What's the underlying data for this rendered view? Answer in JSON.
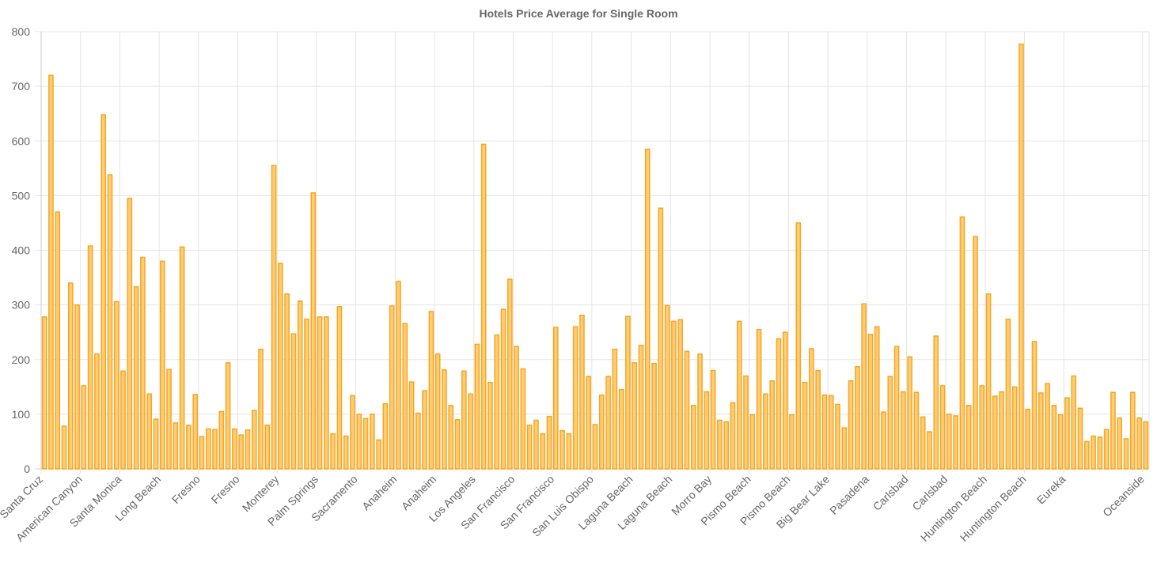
{
  "chart_data": {
    "type": "bar",
    "title": "Hotels Price Average for Single Room",
    "xlabel": "",
    "ylabel": "",
    "ylim": [
      0,
      800
    ],
    "y_ticks": [
      0,
      100,
      200,
      300,
      400,
      500,
      600,
      700,
      800
    ],
    "grid": true,
    "bar_fill": "#ffcd73",
    "bar_border": "#f6a623",
    "grid_color": "#e5e5e5",
    "values": [
      278,
      720,
      470,
      78,
      340,
      300,
      152,
      408,
      210,
      648,
      538,
      306,
      179,
      495,
      333,
      387,
      137,
      91,
      380,
      182,
      84,
      406,
      80,
      136,
      59,
      73,
      72,
      105,
      194,
      73,
      62,
      71,
      107,
      219,
      80,
      555,
      376,
      320,
      247,
      307,
      274,
      505,
      278,
      278,
      64,
      297,
      60,
      134,
      100,
      92,
      100,
      53,
      119,
      298,
      343,
      266,
      159,
      102,
      143,
      288,
      210,
      181,
      116,
      90,
      179,
      137,
      228,
      594,
      158,
      245,
      292,
      347,
      224,
      183,
      80,
      89,
      64,
      96,
      259,
      70,
      64,
      260,
      281,
      169,
      81,
      135,
      169,
      219,
      145,
      279,
      194,
      226,
      585,
      193,
      477,
      299,
      270,
      273,
      215,
      116,
      210,
      141,
      180,
      89,
      86,
      121,
      270,
      170,
      99,
      255,
      137,
      161,
      238,
      250,
      99,
      450,
      158,
      220,
      180,
      135,
      134,
      118,
      75,
      161,
      187,
      302,
      246,
      260,
      104,
      169,
      224,
      141,
      205,
      140,
      95,
      68,
      243,
      152,
      100,
      97,
      461,
      116,
      425,
      152,
      320,
      133,
      141,
      274,
      150,
      777,
      109,
      233,
      139,
      156,
      116,
      99,
      130,
      170,
      111,
      50,
      60,
      58,
      72,
      140,
      93,
      55,
      140,
      93,
      86
    ],
    "x_tick_labels": [
      {
        "index": 0,
        "label": "Santa Cruz"
      },
      {
        "index": 6,
        "label": "American Canyon"
      },
      {
        "index": 12,
        "label": "Santa Monica"
      },
      {
        "index": 18,
        "label": "Long Beach"
      },
      {
        "index": 24,
        "label": "Fresno"
      },
      {
        "index": 30,
        "label": "Fresno"
      },
      {
        "index": 36,
        "label": "Monterey"
      },
      {
        "index": 42,
        "label": "Palm Springs"
      },
      {
        "index": 48,
        "label": "Sacramento"
      },
      {
        "index": 54,
        "label": "Anaheim"
      },
      {
        "index": 60,
        "label": "Anaheim"
      },
      {
        "index": 66,
        "label": "Los Angeles"
      },
      {
        "index": 72,
        "label": "San Francisco"
      },
      {
        "index": 78,
        "label": "San Francisco"
      },
      {
        "index": 84,
        "label": "San Luis Obispo"
      },
      {
        "index": 90,
        "label": "Laguna Beach"
      },
      {
        "index": 96,
        "label": "Laguna Beach"
      },
      {
        "index": 102,
        "label": "Morro Bay"
      },
      {
        "index": 108,
        "label": "Pismo Beach"
      },
      {
        "index": 114,
        "label": "Pismo Beach"
      },
      {
        "index": 120,
        "label": "Big Bear Lake"
      },
      {
        "index": 126,
        "label": "Pasadena"
      },
      {
        "index": 132,
        "label": "Carlsbad"
      },
      {
        "index": 138,
        "label": "Carlsbad"
      },
      {
        "index": 144,
        "label": "Huntington Beach"
      },
      {
        "index": 150,
        "label": "Huntington Beach"
      },
      {
        "index": 156,
        "label": "Eureka"
      },
      {
        "index": 168,
        "label": "Oceanside"
      }
    ]
  }
}
